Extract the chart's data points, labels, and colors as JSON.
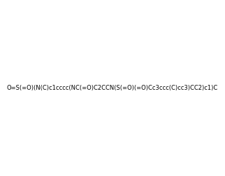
{
  "smiles": "O=S(=O)(N(C)c1cccc(NC(=O)C2CCN(S(=O)(=O)Cc3ccc(C)cc3)CC2)c1)C",
  "image_size": 300,
  "background_color": "#f0f0f0",
  "atom_colors": {
    "N": "#0000ff",
    "O": "#ff0000",
    "S": "#ffff00",
    "C": "#000000"
  }
}
